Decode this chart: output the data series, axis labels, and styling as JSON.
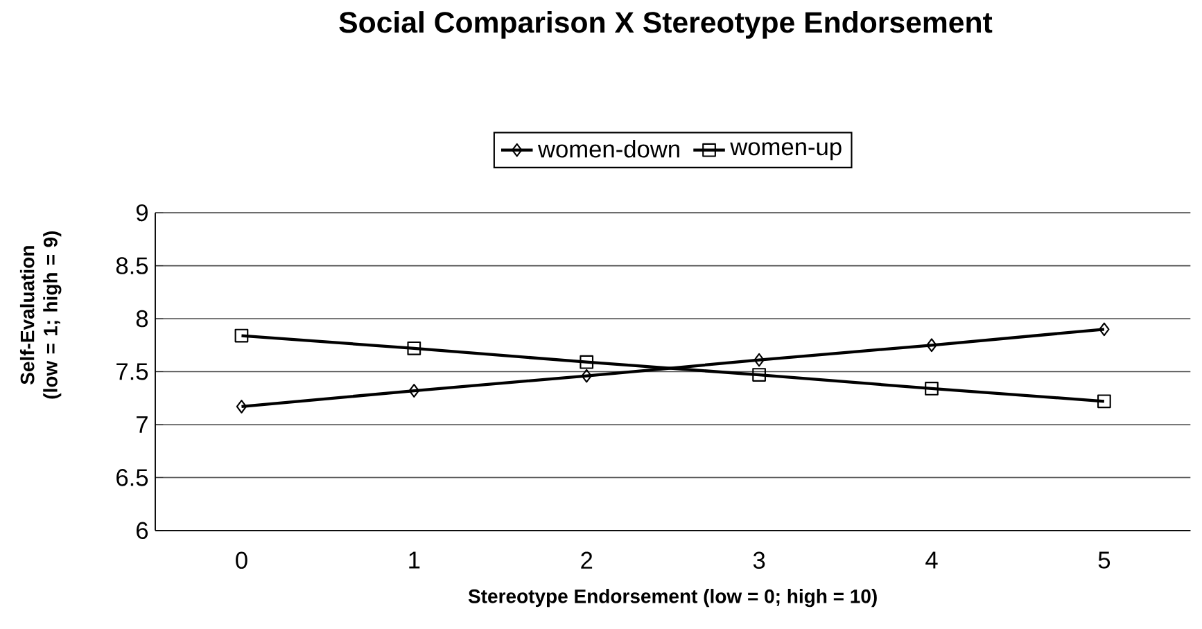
{
  "chart_data": {
    "type": "line",
    "title": "Social Comparison X Stereotype Endorsement",
    "xlabel": "Stereotype Endorsement (low = 0; high = 10)",
    "ylabel": "Self-Evaluation\n(low = 1; high = 9)",
    "categories": [
      "0",
      "1",
      "2",
      "3",
      "4",
      "5"
    ],
    "series": [
      {
        "name": "women-down",
        "color": "#000000",
        "marker": "diamond",
        "values": [
          7.17,
          7.32,
          7.46,
          7.61,
          7.75,
          7.9
        ]
      },
      {
        "name": "women-up",
        "color": "#000000",
        "marker": "square",
        "values": [
          7.84,
          7.72,
          7.59,
          7.47,
          7.34,
          7.22
        ]
      }
    ],
    "ylim": [
      6,
      9
    ],
    "yticks": [
      6,
      6.5,
      7,
      7.5,
      8,
      8.5,
      9
    ],
    "grid": "y",
    "legend": "top",
    "line_style": "solid"
  }
}
